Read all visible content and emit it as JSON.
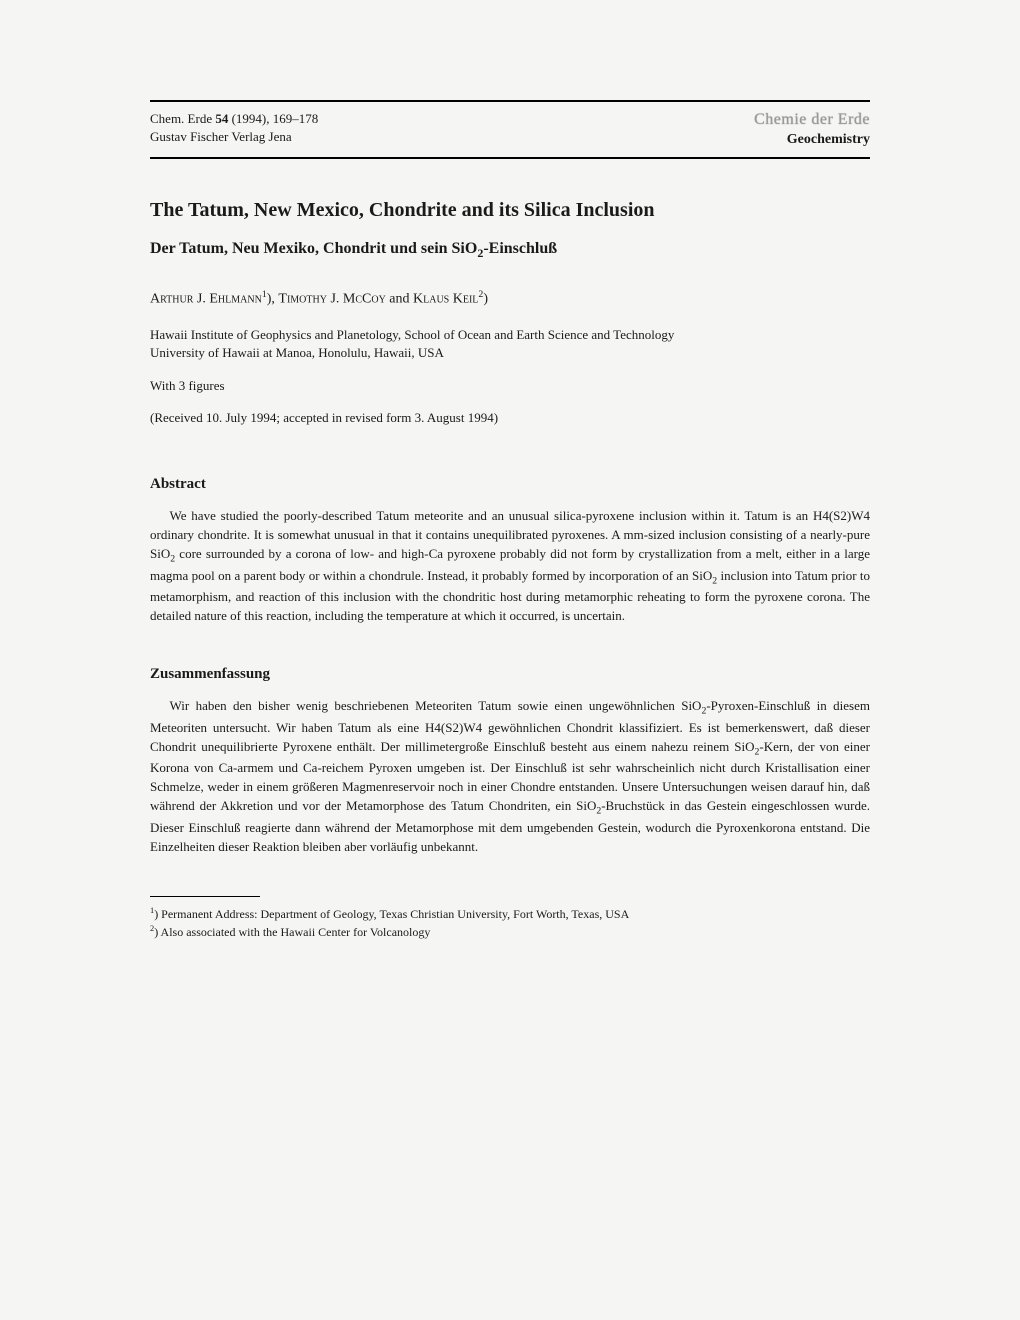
{
  "header": {
    "citation_line1_pre": "Chem. Erde ",
    "citation_volume": "54",
    "citation_line1_post": " (1994), 169–178",
    "citation_line2": "Gustav Fischer Verlag Jena",
    "journal_outline": "Chemie der Erde",
    "journal_solid": "Geochemistry"
  },
  "title_en": "The Tatum, New Mexico, Chondrite and its Silica Inclusion",
  "title_de_pre": "Der Tatum, Neu Mexiko, Chondrit und sein SiO",
  "title_de_sub": "2",
  "title_de_post": "-Einschluß",
  "authors": {
    "a1_first": "Arthur",
    "a1_initial": " J. ",
    "a1_last": "Ehlmann",
    "a1_sup": "1",
    "sep1": "), ",
    "a2_first": "Timothy",
    "a2_initial": " J. ",
    "a2_last": "McCoy",
    "sep2": " and ",
    "a3_first": "Klaus",
    "a3_space": " ",
    "a3_last": "Keil",
    "a3_sup": "2",
    "a3_close": ")"
  },
  "affiliation_l1": "Hawaii Institute of Geophysics and Planetology, School of Ocean and Earth Science and Technology",
  "affiliation_l2": "University of Hawaii at Manoa, Honolulu, Hawaii, USA",
  "figures_note": "With 3 figures",
  "received": "(Received 10. July 1994; accepted in revised form 3. August 1994)",
  "abstract_heading": "Abstract",
  "abstract_p1a": "We have studied the poorly-described Tatum meteorite and an unusual silica-pyroxene inclusion within it. Tatum is an H4(S2)W4 ordinary chondrite. It is somewhat unusual in that it contains unequilibrated pyroxenes. A mm-sized inclusion consisting of a nearly-pure SiO",
  "abstract_p1b": " core surrounded by a corona of low- and high-Ca pyroxene probably did not form by crystallization from a melt, either in a large magma pool on a parent body or within a chondrule. Instead, it probably formed by incorporation of an SiO",
  "abstract_p1c": " inclusion into Tatum prior to metamorphism, and reaction of this inclusion with the chondritic host during metamorphic reheating to form the pyroxene corona. The detailed nature of this reaction, including the temperature at which it occurred, is uncertain.",
  "zusammen_heading": "Zusammenfassung",
  "zus_a": "Wir haben den bisher wenig beschriebenen Meteoriten Tatum sowie einen ungewöhnlichen SiO",
  "zus_b": "-Pyroxen-Einschluß in diesem Meteoriten untersucht. Wir haben Tatum als eine H4(S2)W4 gewöhnlichen Chondrit klassifiziert. Es ist bemerkenswert, daß dieser Chondrit unequilibrierte Pyroxene enthält. Der millimetergroße Einschluß besteht aus einem nahezu reinem SiO",
  "zus_c": "-Kern, der von einer Korona von Ca-armem und Ca-reichem Pyroxen umgeben ist. Der Einschluß ist sehr wahrscheinlich nicht durch Kristallisation einer Schmelze, weder in einem größeren Magmenreservoir noch in einer Chondre entstanden. Unsere Untersuchungen weisen darauf hin, daß während der Akkretion und vor der Metamorphose des Tatum Chondriten, ein SiO",
  "zus_d": "-Bruchstück in das Gestein eingeschlossen wurde. Dieser Einschluß reagierte dann während der Metamorphose mit dem umgebenden Gestein, wodurch die Pyroxenkorona entstand. Die Einzelheiten dieser Reaktion bleiben aber vorläufig unbekannt.",
  "sub2": "2",
  "footnote1_sup": "1",
  "footnote1": ") Permanent Address: Department of Geology, Texas Christian University, Fort Worth, Texas, USA",
  "footnote2_sup": "2",
  "footnote2": ") Also associated with the Hawaii Center for Volcanology"
}
